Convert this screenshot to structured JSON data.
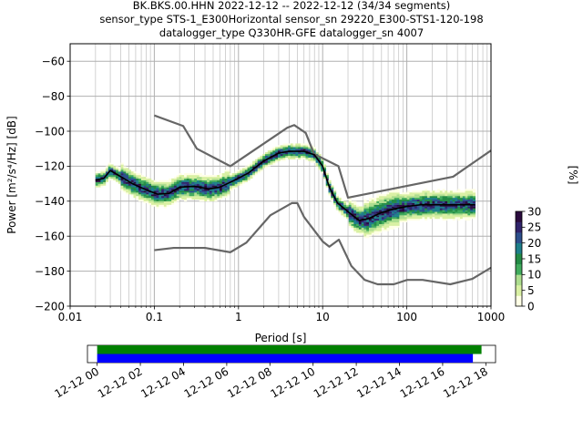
{
  "chart_data": {
    "type": "heatmap",
    "title_lines": [
      "BK.BKS.00.HHN   2022-12-12 -- 2022-12-12  (34/34 segments)",
      "sensor_type STS-1_E300Horizontal sensor_sn 29220_E300-STS1-120-198",
      "datalogger_type Q330HR-GFE datalogger_sn 4007"
    ],
    "xlabel": "Period [s]",
    "ylabel": "Power [m²/s⁴/Hz] [dB]",
    "x_scale": "log",
    "xlim": [
      0.01,
      1000
    ],
    "ylim": [
      -200,
      -50
    ],
    "x_ticks": [
      {
        "value": 0.01,
        "label": "0.01"
      },
      {
        "value": 0.1,
        "label": "0.1"
      },
      {
        "value": 1,
        "label": "1"
      },
      {
        "value": 10,
        "label": "10"
      },
      {
        "value": 100,
        "label": "100"
      },
      {
        "value": 1000,
        "label": "1000"
      }
    ],
    "y_ticks": [
      {
        "value": -60,
        "label": "−60"
      },
      {
        "value": -80,
        "label": "−80"
      },
      {
        "value": -100,
        "label": "−100"
      },
      {
        "value": -120,
        "label": "−120"
      },
      {
        "value": -140,
        "label": "−140"
      },
      {
        "value": -160,
        "label": "−160"
      },
      {
        "value": -180,
        "label": "−180"
      },
      {
        "value": -200,
        "label": "−200"
      }
    ],
    "grid": true,
    "colorbar": {
      "label": "[%]",
      "range": [
        0,
        30
      ],
      "ticks": [
        {
          "value": 0,
          "label": "0"
        },
        {
          "value": 5,
          "label": "5"
        },
        {
          "value": 10,
          "label": "10"
        },
        {
          "value": 15,
          "label": "15"
        },
        {
          "value": 20,
          "label": "20"
        },
        {
          "value": 25,
          "label": "25"
        },
        {
          "value": 30,
          "label": "30"
        }
      ],
      "colors": [
        "#ffffe5",
        "#d9f0a3",
        "#addd8e",
        "#41ab5d",
        "#238b45",
        "#1d7f8a",
        "#2c4f8c",
        "#30236b",
        "#2a0b3e"
      ]
    },
    "noise_models": [
      {
        "id": "high",
        "color": "#666666",
        "points": [
          [
            0.1,
            -91
          ],
          [
            0.22,
            -97
          ],
          [
            0.32,
            -110
          ],
          [
            0.8,
            -120
          ],
          [
            3.8,
            -98
          ],
          [
            4.6,
            -96.5
          ],
          [
            6.3,
            -101
          ],
          [
            7.9,
            -113
          ],
          [
            15.4,
            -120
          ],
          [
            20,
            -138
          ],
          [
            354.8,
            -126
          ],
          [
            1000,
            -111
          ]
        ]
      },
      {
        "id": "low",
        "color": "#666666",
        "points": [
          [
            0.1,
            -168
          ],
          [
            0.17,
            -166.7
          ],
          [
            0.4,
            -166.7
          ],
          [
            0.8,
            -169.2
          ],
          [
            1.24,
            -163.7
          ],
          [
            2.4,
            -148
          ],
          [
            4.3,
            -141.1
          ],
          [
            5,
            -141.1
          ],
          [
            6,
            -149
          ],
          [
            10,
            -163
          ],
          [
            12,
            -166
          ],
          [
            15.6,
            -162
          ],
          [
            21.9,
            -177
          ],
          [
            31.6,
            -185
          ],
          [
            45,
            -187.5
          ],
          [
            70,
            -187.5
          ],
          [
            101,
            -185
          ],
          [
            154,
            -185
          ],
          [
            328,
            -187.5
          ],
          [
            600,
            -184.4
          ],
          [
            1000,
            -178
          ]
        ]
      }
    ],
    "mean_curve": {
      "color": "#000000",
      "points": [
        [
          0.02,
          -128
        ],
        [
          0.025,
          -127
        ],
        [
          0.03,
          -122.5
        ],
        [
          0.04,
          -126
        ],
        [
          0.055,
          -130
        ],
        [
          0.08,
          -133.5
        ],
        [
          0.11,
          -136
        ],
        [
          0.15,
          -135.5
        ],
        [
          0.2,
          -132
        ],
        [
          0.3,
          -131.5
        ],
        [
          0.45,
          -133
        ],
        [
          0.6,
          -132
        ],
        [
          0.9,
          -128
        ],
        [
          1.3,
          -124
        ],
        [
          2,
          -117
        ],
        [
          3,
          -112.5
        ],
        [
          4,
          -111.5
        ],
        [
          6,
          -111.5
        ],
        [
          8,
          -113.5
        ],
        [
          10,
          -120
        ],
        [
          12,
          -132
        ],
        [
          15,
          -141
        ],
        [
          20,
          -146
        ],
        [
          27,
          -151
        ],
        [
          35,
          -150
        ],
        [
          50,
          -146.5
        ],
        [
          70,
          -144.5
        ],
        [
          100,
          -143
        ],
        [
          150,
          -142
        ],
        [
          250,
          -142
        ],
        [
          400,
          -142
        ],
        [
          650,
          -142
        ]
      ]
    },
    "x_range_s": [
      0.02,
      650
    ],
    "x_range_label": ""
  },
  "timeline": {
    "tick_labels": [
      "12-12 00",
      "12-12 02",
      "12-12 04",
      "12-12 06",
      "12-12 08",
      "12-12 10",
      "12-12 12",
      "12-12 14",
      "12-12 16",
      "12-12 18"
    ],
    "tick_hours": [
      0,
      2,
      4,
      6,
      8,
      10,
      12,
      14,
      16,
      18
    ],
    "range_hours": [
      -0.45,
      18.45
    ],
    "bars": [
      {
        "id": "data-coverage",
        "color": "#008000",
        "start_hour": 0,
        "end_hour": 17.8
      },
      {
        "id": "psd-segments",
        "color": "#0000ff",
        "start_hour": 0,
        "end_hour": 17.4
      }
    ]
  }
}
